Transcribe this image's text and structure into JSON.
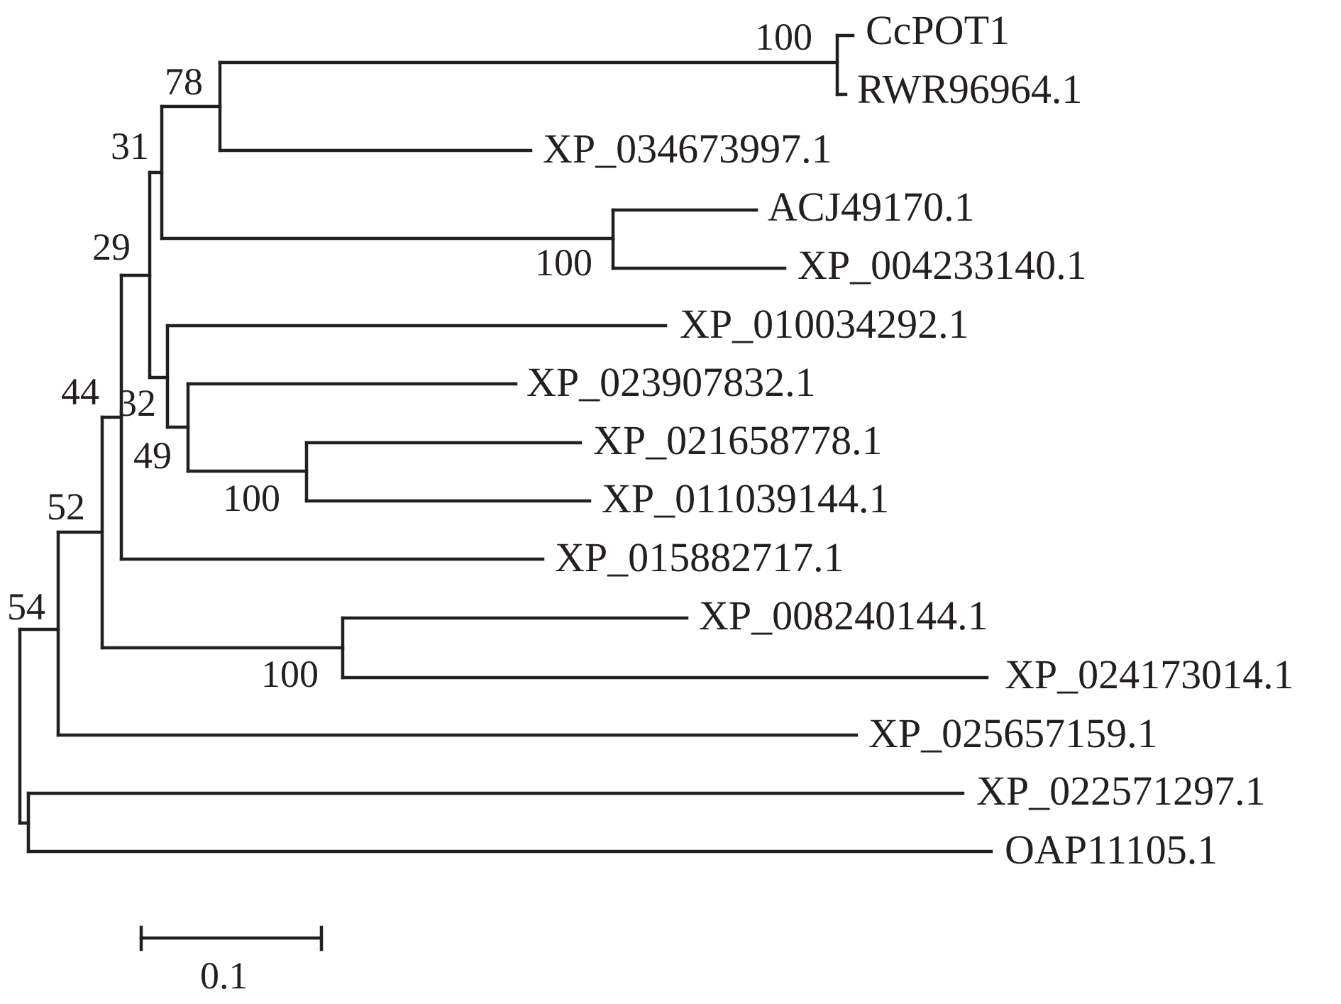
{
  "tree": {
    "taxa": {
      "ccpot1": "CcPOT1",
      "rwr96964": "RWR96964.1",
      "xp034673997": "XP_034673997.1",
      "acj49170": "ACJ49170.1",
      "xp004233140": "XP_004233140.1",
      "xp010034292": "XP_010034292.1",
      "xp023907832": "XP_023907832.1",
      "xp021658778": "XP_021658778.1",
      "xp011039144": "XP_011039144.1",
      "xp015882717": "XP_015882717.1",
      "xp008240144": "XP_008240144.1",
      "xp024173014": "XP_024173014.1",
      "xp025657159": "XP_025657159.1",
      "xp022571297": "XP_022571297.1",
      "oap11105": "OAP11105.1"
    },
    "bootstrap": {
      "ccpot1_rwr": "100",
      "n78": "78",
      "n31": "31",
      "acj_xp004": "100",
      "n29": "29",
      "n32": "32",
      "n49": "49",
      "xp021_xp011": "100",
      "n44": "44",
      "n52": "52",
      "xp008_xp024": "100",
      "n54": "54"
    },
    "scale_bar": {
      "label": "0.1"
    },
    "colors": {
      "line": "#231f20",
      "text": "#231f20",
      "background": "#ffffff"
    }
  }
}
